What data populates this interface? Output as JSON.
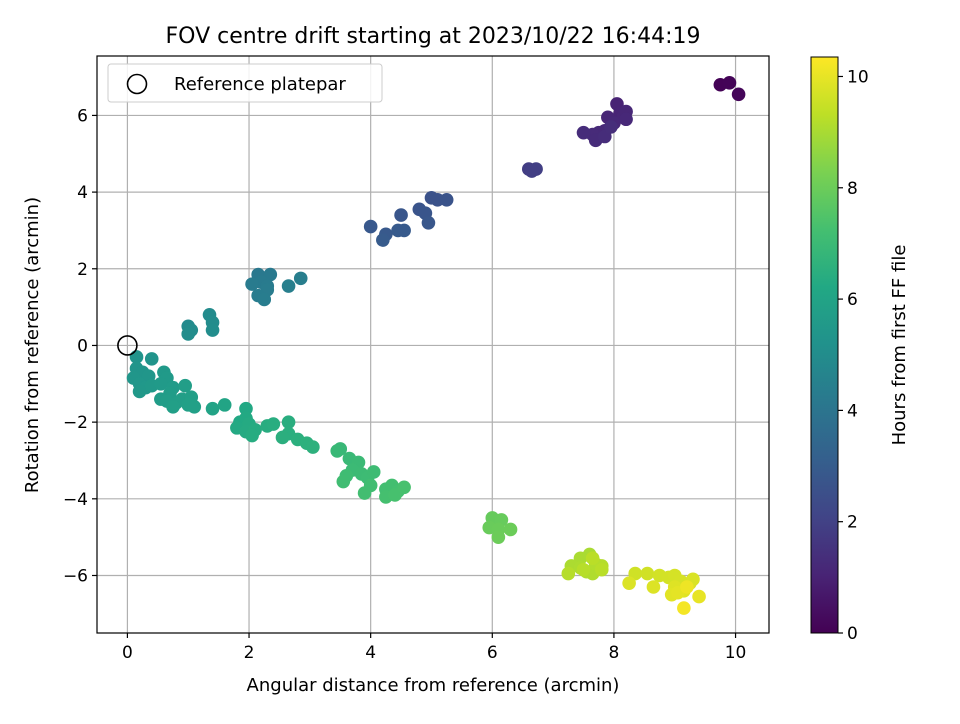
{
  "chart_data": {
    "type": "scatter",
    "title": "FOV centre drift starting at 2023/10/22 16:44:19",
    "xlabel": "Angular distance from reference (arcmin)",
    "ylabel": "Rotation from reference (arcmin)",
    "xlim": [
      -0.5,
      10.55
    ],
    "ylim": [
      -7.5,
      7.55
    ],
    "xticks": [
      0,
      2,
      4,
      6,
      8,
      10
    ],
    "yticks": [
      -6,
      -4,
      -2,
      0,
      2,
      4,
      6
    ],
    "grid": true,
    "legend": {
      "position": "top-left",
      "entries": [
        {
          "label": "Reference platepar",
          "marker": "open-circle"
        }
      ]
    },
    "reference_point": {
      "x": 0,
      "y": 0
    },
    "colorbar": {
      "label": "Hours from first FF file",
      "colormap": "viridis",
      "range": [
        0,
        10.35
      ],
      "ticks": [
        0,
        2,
        4,
        6,
        8,
        10
      ]
    },
    "points": [
      {
        "x": 9.75,
        "y": 6.8,
        "c": 0.05
      },
      {
        "x": 9.9,
        "y": 6.85,
        "c": 0.1
      },
      {
        "x": 10.05,
        "y": 6.55,
        "c": 0.15
      },
      {
        "x": 8.05,
        "y": 6.3,
        "c": 1.0
      },
      {
        "x": 8.1,
        "y": 6.05,
        "c": 1.05
      },
      {
        "x": 8.15,
        "y": 5.95,
        "c": 1.1
      },
      {
        "x": 7.9,
        "y": 5.95,
        "c": 1.1
      },
      {
        "x": 8.2,
        "y": 6.1,
        "c": 1.12
      },
      {
        "x": 8.0,
        "y": 5.8,
        "c": 1.15
      },
      {
        "x": 8.2,
        "y": 5.9,
        "c": 1.18
      },
      {
        "x": 7.85,
        "y": 5.6,
        "c": 1.2
      },
      {
        "x": 7.75,
        "y": 5.55,
        "c": 1.22
      },
      {
        "x": 7.65,
        "y": 5.5,
        "c": 1.25
      },
      {
        "x": 7.7,
        "y": 5.35,
        "c": 1.27
      },
      {
        "x": 7.5,
        "y": 5.55,
        "c": 1.3
      },
      {
        "x": 7.85,
        "y": 5.45,
        "c": 1.32
      },
      {
        "x": 7.95,
        "y": 5.7,
        "c": 1.35
      },
      {
        "x": 6.6,
        "y": 4.6,
        "c": 1.85
      },
      {
        "x": 6.72,
        "y": 4.6,
        "c": 1.9
      },
      {
        "x": 6.65,
        "y": 4.55,
        "c": 1.92
      },
      {
        "x": 5.0,
        "y": 3.85,
        "c": 2.6
      },
      {
        "x": 5.1,
        "y": 3.8,
        "c": 2.62
      },
      {
        "x": 5.25,
        "y": 3.8,
        "c": 2.65
      },
      {
        "x": 4.8,
        "y": 3.55,
        "c": 2.7
      },
      {
        "x": 4.9,
        "y": 3.45,
        "c": 2.72
      },
      {
        "x": 4.5,
        "y": 3.4,
        "c": 2.75
      },
      {
        "x": 4.95,
        "y": 3.2,
        "c": 2.78
      },
      {
        "x": 4.0,
        "y": 3.1,
        "c": 2.85
      },
      {
        "x": 4.25,
        "y": 2.9,
        "c": 2.88
      },
      {
        "x": 4.45,
        "y": 3.0,
        "c": 2.9
      },
      {
        "x": 4.55,
        "y": 3.0,
        "c": 2.92
      },
      {
        "x": 4.2,
        "y": 2.75,
        "c": 2.95
      },
      {
        "x": 2.15,
        "y": 1.85,
        "c": 4.15
      },
      {
        "x": 2.35,
        "y": 1.85,
        "c": 4.2
      },
      {
        "x": 2.2,
        "y": 1.65,
        "c": 4.22
      },
      {
        "x": 2.3,
        "y": 1.55,
        "c": 4.25
      },
      {
        "x": 2.05,
        "y": 1.6,
        "c": 4.27
      },
      {
        "x": 2.3,
        "y": 1.45,
        "c": 4.3
      },
      {
        "x": 2.15,
        "y": 1.3,
        "c": 4.32
      },
      {
        "x": 2.25,
        "y": 1.2,
        "c": 4.35
      },
      {
        "x": 2.85,
        "y": 1.75,
        "c": 4.4
      },
      {
        "x": 2.65,
        "y": 1.55,
        "c": 4.42
      },
      {
        "x": 1.0,
        "y": 0.5,
        "c": 4.9
      },
      {
        "x": 1.35,
        "y": 0.8,
        "c": 4.92
      },
      {
        "x": 1.05,
        "y": 0.4,
        "c": 4.95
      },
      {
        "x": 1.4,
        "y": 0.6,
        "c": 4.97
      },
      {
        "x": 1.0,
        "y": 0.3,
        "c": 5.0
      },
      {
        "x": 1.4,
        "y": 0.4,
        "c": 5.02
      },
      {
        "x": 0.15,
        "y": -0.3,
        "c": 5.3
      },
      {
        "x": 0.4,
        "y": -0.35,
        "c": 5.32
      },
      {
        "x": 0.15,
        "y": -0.6,
        "c": 5.35
      },
      {
        "x": 0.25,
        "y": -0.7,
        "c": 5.37
      },
      {
        "x": 0.1,
        "y": -0.85,
        "c": 5.4
      },
      {
        "x": 0.35,
        "y": -0.8,
        "c": 5.42
      },
      {
        "x": 0.2,
        "y": -1.0,
        "c": 5.45
      },
      {
        "x": 0.3,
        "y": -1.1,
        "c": 5.47
      },
      {
        "x": 0.2,
        "y": -1.2,
        "c": 5.5
      },
      {
        "x": 0.4,
        "y": -1.05,
        "c": 5.52
      },
      {
        "x": 0.6,
        "y": -0.7,
        "c": 5.55
      },
      {
        "x": 0.65,
        "y": -0.85,
        "c": 5.57
      },
      {
        "x": 0.55,
        "y": -1.0,
        "c": 5.6
      },
      {
        "x": 0.75,
        "y": -1.1,
        "c": 5.62
      },
      {
        "x": 0.7,
        "y": -1.25,
        "c": 5.65
      },
      {
        "x": 0.55,
        "y": -1.4,
        "c": 5.67
      },
      {
        "x": 0.65,
        "y": -1.45,
        "c": 5.7
      },
      {
        "x": 0.8,
        "y": -1.5,
        "c": 5.72
      },
      {
        "x": 0.95,
        "y": -1.05,
        "c": 5.75
      },
      {
        "x": 0.9,
        "y": -1.4,
        "c": 5.77
      },
      {
        "x": 1.05,
        "y": -1.35,
        "c": 5.8
      },
      {
        "x": 0.75,
        "y": -1.6,
        "c": 5.82
      },
      {
        "x": 1.0,
        "y": -1.55,
        "c": 5.85
      },
      {
        "x": 1.1,
        "y": -1.6,
        "c": 5.87
      },
      {
        "x": 1.4,
        "y": -1.65,
        "c": 6.0
      },
      {
        "x": 1.6,
        "y": -1.55,
        "c": 6.05
      },
      {
        "x": 1.95,
        "y": -1.65,
        "c": 6.2
      },
      {
        "x": 1.85,
        "y": -2.0,
        "c": 6.22
      },
      {
        "x": 1.95,
        "y": -1.9,
        "c": 6.25
      },
      {
        "x": 1.8,
        "y": -2.15,
        "c": 6.27
      },
      {
        "x": 2.0,
        "y": -2.05,
        "c": 6.3
      },
      {
        "x": 1.95,
        "y": -2.25,
        "c": 6.32
      },
      {
        "x": 2.1,
        "y": -2.2,
        "c": 6.35
      },
      {
        "x": 2.05,
        "y": -2.35,
        "c": 6.37
      },
      {
        "x": 2.3,
        "y": -2.1,
        "c": 6.4
      },
      {
        "x": 2.4,
        "y": -2.05,
        "c": 6.42
      },
      {
        "x": 2.65,
        "y": -2.0,
        "c": 6.45
      },
      {
        "x": 2.65,
        "y": -2.3,
        "c": 6.47
      },
      {
        "x": 2.55,
        "y": -2.4,
        "c": 6.5
      },
      {
        "x": 2.8,
        "y": -2.45,
        "c": 6.52
      },
      {
        "x": 2.95,
        "y": -2.55,
        "c": 6.55
      },
      {
        "x": 3.05,
        "y": -2.65,
        "c": 6.57
      },
      {
        "x": 3.5,
        "y": -2.7,
        "c": 6.9
      },
      {
        "x": 3.45,
        "y": -2.75,
        "c": 6.92
      },
      {
        "x": 3.65,
        "y": -2.95,
        "c": 6.95
      },
      {
        "x": 3.8,
        "y": -3.05,
        "c": 6.97
      },
      {
        "x": 3.7,
        "y": -3.25,
        "c": 7.0
      },
      {
        "x": 3.85,
        "y": -3.35,
        "c": 7.02
      },
      {
        "x": 3.95,
        "y": -3.45,
        "c": 7.05
      },
      {
        "x": 4.05,
        "y": -3.3,
        "c": 7.07
      },
      {
        "x": 3.6,
        "y": -3.4,
        "c": 7.1
      },
      {
        "x": 3.55,
        "y": -3.55,
        "c": 7.12
      },
      {
        "x": 4.0,
        "y": -3.65,
        "c": 7.15
      },
      {
        "x": 3.9,
        "y": -3.85,
        "c": 7.17
      },
      {
        "x": 4.25,
        "y": -3.75,
        "c": 7.2
      },
      {
        "x": 4.35,
        "y": -3.65,
        "c": 7.22
      },
      {
        "x": 4.45,
        "y": -3.8,
        "c": 7.25
      },
      {
        "x": 4.25,
        "y": -3.95,
        "c": 7.27
      },
      {
        "x": 4.4,
        "y": -3.9,
        "c": 7.3
      },
      {
        "x": 4.55,
        "y": -3.7,
        "c": 7.32
      },
      {
        "x": 6.0,
        "y": -4.5,
        "c": 7.9
      },
      {
        "x": 6.15,
        "y": -4.55,
        "c": 7.92
      },
      {
        "x": 5.95,
        "y": -4.75,
        "c": 7.95
      },
      {
        "x": 6.1,
        "y": -4.8,
        "c": 7.97
      },
      {
        "x": 6.3,
        "y": -4.8,
        "c": 8.0
      },
      {
        "x": 6.1,
        "y": -5.0,
        "c": 8.02
      },
      {
        "x": 7.6,
        "y": -5.45,
        "c": 9.0
      },
      {
        "x": 7.45,
        "y": -5.55,
        "c": 9.02
      },
      {
        "x": 7.3,
        "y": -5.75,
        "c": 9.05
      },
      {
        "x": 7.45,
        "y": -5.8,
        "c": 9.07
      },
      {
        "x": 7.55,
        "y": -5.9,
        "c": 9.1
      },
      {
        "x": 7.65,
        "y": -5.95,
        "c": 9.12
      },
      {
        "x": 7.7,
        "y": -5.7,
        "c": 9.15
      },
      {
        "x": 7.8,
        "y": -5.75,
        "c": 9.17
      },
      {
        "x": 7.25,
        "y": -5.95,
        "c": 9.2
      },
      {
        "x": 7.5,
        "y": -5.85,
        "c": 9.22
      },
      {
        "x": 7.8,
        "y": -5.85,
        "c": 9.25
      },
      {
        "x": 7.65,
        "y": -5.55,
        "c": 9.27
      },
      {
        "x": 8.35,
        "y": -5.95,
        "c": 9.6
      },
      {
        "x": 8.55,
        "y": -5.95,
        "c": 9.62
      },
      {
        "x": 8.75,
        "y": -6.0,
        "c": 9.65
      },
      {
        "x": 8.9,
        "y": -6.05,
        "c": 9.67
      },
      {
        "x": 9.0,
        "y": -6.0,
        "c": 9.7
      },
      {
        "x": 9.1,
        "y": -6.15,
        "c": 9.72
      },
      {
        "x": 9.25,
        "y": -6.2,
        "c": 9.75
      },
      {
        "x": 9.3,
        "y": -6.1,
        "c": 9.77
      },
      {
        "x": 8.25,
        "y": -6.2,
        "c": 9.8
      },
      {
        "x": 8.65,
        "y": -6.3,
        "c": 9.82
      },
      {
        "x": 9.0,
        "y": -6.3,
        "c": 9.85
      },
      {
        "x": 9.15,
        "y": -6.4,
        "c": 9.87
      },
      {
        "x": 8.95,
        "y": -6.5,
        "c": 9.9
      },
      {
        "x": 9.05,
        "y": -6.45,
        "c": 9.95
      },
      {
        "x": 9.4,
        "y": -6.55,
        "c": 10.0
      },
      {
        "x": 9.2,
        "y": -6.3,
        "c": 10.1
      },
      {
        "x": 9.15,
        "y": -6.85,
        "c": 10.2
      }
    ]
  }
}
